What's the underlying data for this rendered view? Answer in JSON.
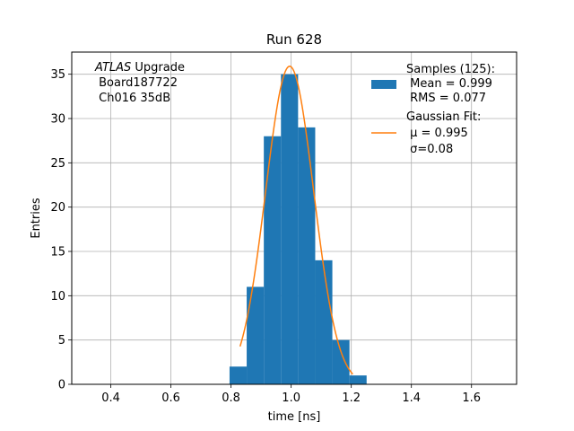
{
  "chart_data": {
    "type": "bar",
    "title": "Run 628",
    "xlabel": "time [ns]",
    "ylabel": "Entries",
    "xlim": [
      0.27,
      1.75
    ],
    "ylim": [
      0,
      37.5
    ],
    "grid": true,
    "xticks": [
      "0.4",
      "0.6",
      "0.8",
      "1.0",
      "1.2",
      "1.4",
      "1.6"
    ],
    "yticks": [
      "0",
      "5",
      "10",
      "15",
      "20",
      "25",
      "30",
      "35"
    ],
    "annotation": {
      "line1_italic": "ATLAS",
      "line1_rest": " Upgrade",
      "line2": " Board187722",
      "line3": " Ch016 35dB"
    },
    "legend": {
      "position": "upper right",
      "samples_label": [
        "Samples (125):",
        " Mean = 0.999",
        " RMS = 0.077"
      ],
      "fit_label": [
        "Gaussian Fit:",
        " μ = 0.995",
        " σ=0.08"
      ]
    },
    "series": [
      {
        "name": "Samples (125)",
        "kind": "histogram",
        "color": "#1f77b4",
        "bin_edges": [
          0.795,
          0.852,
          0.909,
          0.966,
          1.023,
          1.08,
          1.137,
          1.194,
          1.251
        ],
        "counts": [
          2,
          11,
          28,
          35,
          29,
          14,
          5,
          1
        ]
      },
      {
        "name": "Gaussian Fit",
        "kind": "line",
        "color": "#ff7f0e",
        "mu": 0.995,
        "sigma": 0.08,
        "amplitude": 35.9,
        "x_range": [
          0.83,
          1.205
        ]
      }
    ]
  }
}
